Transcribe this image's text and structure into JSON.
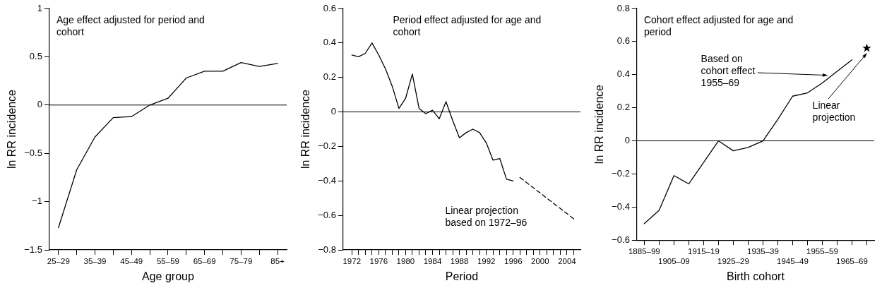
{
  "chart_data": [
    {
      "type": "line",
      "title": "Age effect adjusted for period and cohort",
      "xlabel": "Age group",
      "ylabel": "ln RR incidence",
      "categories": [
        "25–29",
        null,
        "35–39",
        null,
        "45–49",
        null,
        "55–59",
        null,
        "65–69",
        null,
        "75–79",
        null,
        "85+"
      ],
      "series": [
        {
          "color": "#000000",
          "values": [
            -1.27,
            -0.67,
            -0.33,
            -0.13,
            -0.12,
            0.0,
            0.07,
            0.28,
            0.35,
            0.35,
            0.44,
            0.4,
            0.43
          ]
        }
      ],
      "ylim": [
        -1.5,
        1
      ],
      "yticks": [
        {
          "value": -1.5,
          "label": "−1.5"
        },
        {
          "value": -1,
          "label": "−1"
        },
        {
          "value": -0.5,
          "label": "−0.5"
        },
        0,
        0.5,
        1
      ],
      "ref_lines": [
        {
          "axis": "y",
          "value": 0
        }
      ],
      "marker": "none",
      "line_style": "solid",
      "grid": false,
      "legend": false
    },
    {
      "type": "line",
      "title": "Period effect adjusted for age and cohort",
      "xlabel": "Period",
      "ylabel": "ln RR incidence",
      "annotations": [
        "Linear projection based on 1972–96"
      ],
      "series": [
        {
          "color": "#000000",
          "x": [
            1972,
            1973,
            1974,
            1975,
            1976,
            1977,
            1978,
            1979,
            1980,
            1981,
            1982,
            1983,
            1984,
            1985,
            1986,
            1987,
            1988,
            1989,
            1990,
            1991,
            1992,
            1993,
            1994,
            1995,
            1996
          ],
          "values": [
            0.33,
            0.32,
            0.34,
            0.4,
            0.33,
            0.25,
            0.15,
            0.02,
            0.08,
            0.22,
            0.02,
            -0.01,
            0.01,
            -0.04,
            0.06,
            -0.05,
            -0.15,
            -0.12,
            -0.1,
            -0.12,
            -0.18,
            -0.28,
            -0.27,
            -0.39,
            -0.4
          ]
        },
        {
          "color": "#000000",
          "x": [
            1997,
            2005
          ],
          "values": [
            -0.38,
            -0.62
          ],
          "line_style": "dashed"
        }
      ],
      "xlim": [
        1970.7,
        2006
      ],
      "xticks": [
        1972,
        {
          "value": 1973,
          "label": null
        },
        {
          "value": 1974,
          "label": null
        },
        {
          "value": 1975,
          "label": null
        },
        1976,
        {
          "value": 1977,
          "label": null
        },
        {
          "value": 1978,
          "label": null
        },
        {
          "value": 1979,
          "label": null
        },
        1980,
        {
          "value": 1981,
          "label": null
        },
        {
          "value": 1982,
          "label": null
        },
        {
          "value": 1983,
          "label": null
        },
        1984,
        {
          "value": 1985,
          "label": null
        },
        {
          "value": 1986,
          "label": null
        },
        {
          "value": 1987,
          "label": null
        },
        1988,
        {
          "value": 1989,
          "label": null
        },
        {
          "value": 1990,
          "label": null
        },
        {
          "value": 1991,
          "label": null
        },
        1992,
        {
          "value": 1993,
          "label": null
        },
        {
          "value": 1994,
          "label": null
        },
        {
          "value": 1995,
          "label": null
        },
        1996,
        {
          "value": 1997,
          "label": null
        },
        {
          "value": 1998,
          "label": null
        },
        {
          "value": 1999,
          "label": null
        },
        2000,
        {
          "value": 2001,
          "label": null
        },
        {
          "value": 2002,
          "label": null
        },
        {
          "value": 2003,
          "label": null
        },
        2004,
        {
          "value": 2005,
          "label": null
        }
      ],
      "ylim": [
        -0.8,
        0.6
      ],
      "yticks": [
        {
          "value": -0.8,
          "label": "−0.8"
        },
        {
          "value": -0.6,
          "label": "−0.6"
        },
        {
          "value": -0.4,
          "label": "−0.4"
        },
        {
          "value": -0.2,
          "label": "−0.2"
        },
        0,
        0.2,
        0.4,
        0.6
      ],
      "ref_lines": [
        {
          "axis": "y",
          "value": 0
        }
      ],
      "marker": "none",
      "line_style": "solid",
      "grid": false,
      "legend": false
    },
    {
      "type": "line",
      "title": "Cohort effect adjusted for age and period",
      "xlabel": "Birth cohort",
      "ylabel": "ln RR incidence",
      "annotations": [
        "Based on cohort effect 1955–69",
        "Linear projection"
      ],
      "categories": [
        "1885–99",
        null,
        "1905–09",
        null,
        "1915–19",
        null,
        "1925–29",
        null,
        "1935–39",
        null,
        "1945–49",
        null,
        "1955–59",
        null,
        "1965–69",
        null
      ],
      "series": [
        {
          "color": "#000000",
          "values": [
            -0.5,
            -0.42,
            -0.21,
            -0.26,
            -0.13,
            0.0,
            -0.06,
            -0.04,
            0.0,
            0.13,
            0.27,
            0.29,
            0.35,
            0.42,
            0.49,
            null
          ]
        },
        {
          "type": "scatter",
          "color": "#000000",
          "marker": "star",
          "values": [
            null,
            null,
            null,
            null,
            null,
            null,
            null,
            null,
            null,
            null,
            null,
            null,
            null,
            null,
            null,
            0.56
          ]
        }
      ],
      "ylim": [
        -0.6,
        0.8
      ],
      "yticks": [
        {
          "value": -0.6,
          "label": "−0.6"
        },
        {
          "value": -0.4,
          "label": "−0.4"
        },
        {
          "value": -0.2,
          "label": "−0.2"
        },
        0,
        0.2,
        0.4,
        0.6,
        0.8
      ],
      "ref_lines": [
        {
          "axis": "y",
          "value": 0
        }
      ],
      "marker": "none",
      "line_style": "solid",
      "grid": false,
      "legend": false
    }
  ]
}
